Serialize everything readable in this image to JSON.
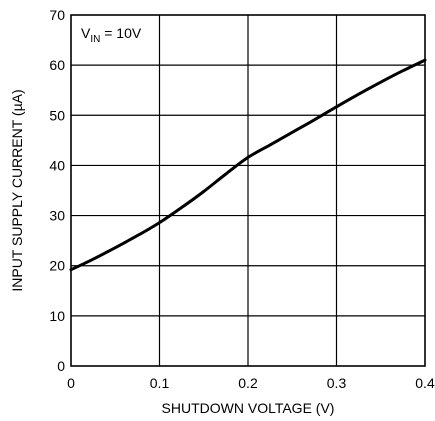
{
  "chart_data": {
    "type": "line",
    "title": "",
    "xlabel": "SHUTDOWN VOLTAGE (V)",
    "ylabel": "INPUT SUPPLY CURRENT (µA)",
    "xlim": [
      0,
      0.4
    ],
    "ylim": [
      0,
      70
    ],
    "xticks": [
      0,
      0.1,
      0.2,
      0.3,
      0.4
    ],
    "xtick_labels": [
      "0",
      "0.1",
      "0.2",
      "0.3",
      "0.4"
    ],
    "yticks": [
      0,
      10,
      20,
      30,
      40,
      50,
      60,
      70
    ],
    "ytick_labels": [
      "0",
      "10",
      "20",
      "30",
      "40",
      "50",
      "60",
      "70"
    ],
    "grid": true,
    "annotation": {
      "main": "V",
      "sub": "IN",
      "rest": " = 10V"
    },
    "series": [
      {
        "x": [
          0,
          0.025,
          0.05,
          0.075,
          0.1,
          0.125,
          0.15,
          0.175,
          0.2,
          0.225,
          0.25,
          0.275,
          0.3,
          0.325,
          0.35,
          0.375,
          0.4
        ],
        "y": [
          19.2,
          21.3,
          23.6,
          26.0,
          28.6,
          31.6,
          34.8,
          38.3,
          41.6,
          44.1,
          46.6,
          49.1,
          51.7,
          54.2,
          56.6,
          58.9,
          61.0
        ]
      }
    ]
  }
}
